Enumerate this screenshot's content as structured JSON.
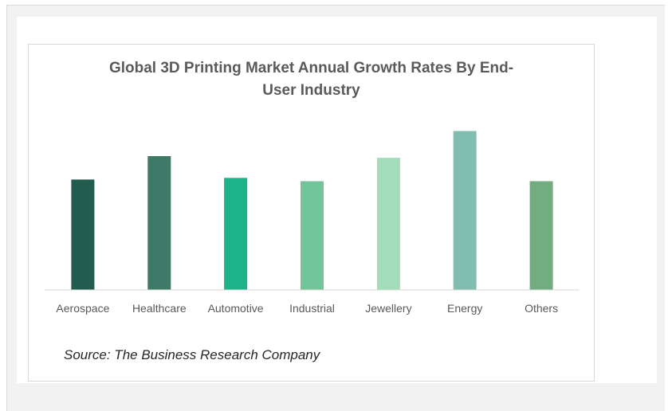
{
  "chart_data": {
    "type": "bar",
    "title_line1": "Global 3D Printing Market Annual Growth Rates By End-",
    "title_line2": "User Industry",
    "categories": [
      "Aerospace",
      "Healthcare",
      "Automotive",
      "Industrial",
      "Jewellery",
      "Energy",
      "Others"
    ],
    "values": [
      13.2,
      16.0,
      13.4,
      13.0,
      15.8,
      19.0,
      13.0
    ],
    "colors": [
      "#215c4e",
      "#3f7a68",
      "#1db38a",
      "#72c49a",
      "#a3dcba",
      "#82bdb2",
      "#72ad7f"
    ],
    "ylim": [
      0,
      20
    ],
    "grid": false,
    "legend": "none",
    "source": "Source:  The Business Research Company"
  }
}
